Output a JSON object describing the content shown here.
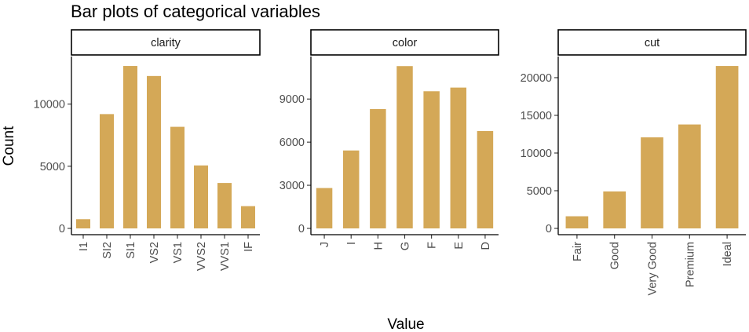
{
  "chart_data": {
    "type": "bar",
    "title": "Bar plots of categorical variables",
    "xlabel": "Value",
    "ylabel": "Count",
    "bar_color": "#D4A857",
    "grid": false,
    "panels": [
      {
        "name": "clarity",
        "categories": [
          "I1",
          "SI2",
          "SI1",
          "VS2",
          "VS1",
          "VVS2",
          "VVS1",
          "IF"
        ],
        "values": [
          741,
          9194,
          13065,
          12258,
          8171,
          5066,
          3655,
          1790
        ],
        "ylim": [
          0,
          13700
        ],
        "yticks": [
          0,
          5000,
          10000
        ]
      },
      {
        "name": "color",
        "categories": [
          "J",
          "I",
          "H",
          "G",
          "F",
          "E",
          "D"
        ],
        "values": [
          2808,
          5422,
          8304,
          11292,
          9542,
          9797,
          6775
        ],
        "ylim": [
          0,
          11850
        ],
        "yticks": [
          0,
          3000,
          6000,
          9000
        ]
      },
      {
        "name": "cut",
        "categories": [
          "Fair",
          "Good",
          "Very Good",
          "Premium",
          "Ideal"
        ],
        "values": [
          1610,
          4906,
          12082,
          13791,
          21551
        ],
        "ylim": [
          0,
          22600
        ],
        "yticks": [
          0,
          5000,
          10000,
          15000,
          20000
        ]
      }
    ]
  }
}
